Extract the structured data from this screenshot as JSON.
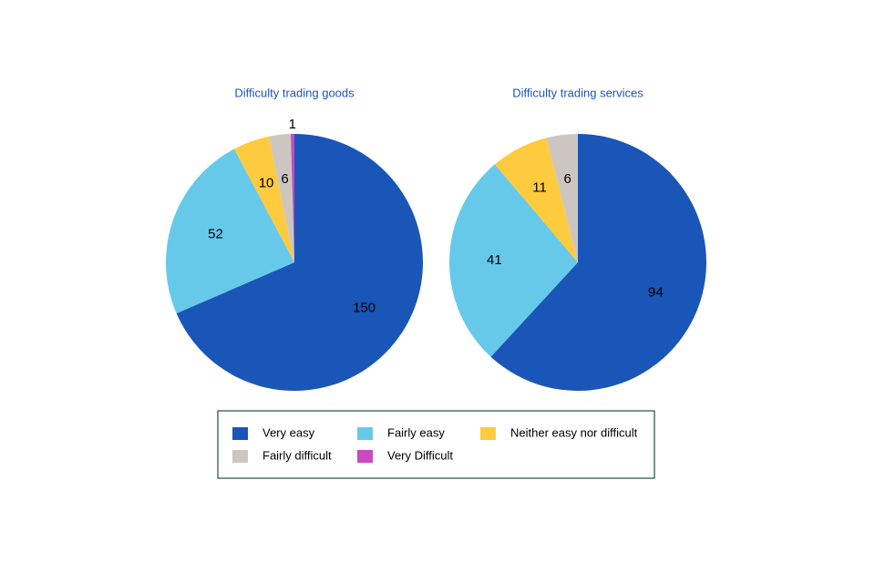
{
  "chart_data": [
    {
      "type": "pie",
      "title": "Difficulty trading goods",
      "categories": [
        "Very easy",
        "Fairly easy",
        "Neither easy nor difficult",
        "Fairly difficult",
        "Very Difficult"
      ],
      "values": [
        150,
        52,
        10,
        6,
        1
      ],
      "colors": [
        "#1a56b7",
        "#66c9ea",
        "#fecb3e",
        "#cdc6c0",
        "#c849c1"
      ]
    },
    {
      "type": "pie",
      "title": "Difficulty trading services",
      "categories": [
        "Very easy",
        "Fairly easy",
        "Neither easy nor difficult",
        "Fairly difficult"
      ],
      "values": [
        94,
        41,
        11,
        6
      ],
      "colors": [
        "#1a56b7",
        "#66c9ea",
        "#fecb3e",
        "#cdc6c0"
      ]
    }
  ]
}
